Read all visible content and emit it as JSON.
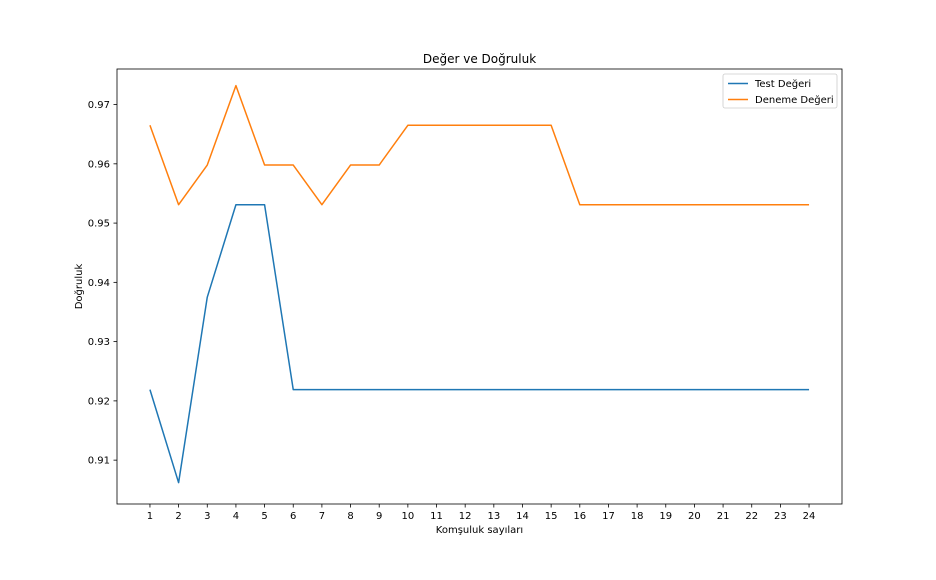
{
  "chart_data": {
    "type": "line",
    "title": "Değer ve Doğruluk",
    "xlabel": "Komşuluk sayıları",
    "ylabel": "Doğruluk",
    "x": [
      1,
      2,
      3,
      4,
      5,
      6,
      7,
      8,
      9,
      10,
      11,
      12,
      13,
      14,
      15,
      16,
      17,
      18,
      19,
      20,
      21,
      22,
      23,
      24
    ],
    "xticks": [
      "1",
      "2",
      "3",
      "4",
      "5",
      "6",
      "7",
      "8",
      "9",
      "10",
      "11",
      "12",
      "13",
      "14",
      "15",
      "16",
      "17",
      "18",
      "19",
      "20",
      "21",
      "22",
      "23",
      "24"
    ],
    "yticks": [
      "0.91",
      "0.92",
      "0.93",
      "0.94",
      "0.95",
      "0.96",
      "0.97"
    ],
    "xlim": [
      -0.15,
      25.15
    ],
    "ylim": [
      0.9026,
      0.976
    ],
    "grid": false,
    "legend_position": "top-right",
    "series": [
      {
        "name": "Test Değeri",
        "color": "#1f77b4",
        "values": [
          0.9219,
          0.9062,
          0.9375,
          0.9531,
          0.9531,
          0.9219,
          0.9219,
          0.9219,
          0.9219,
          0.9219,
          0.9219,
          0.9219,
          0.9219,
          0.9219,
          0.9219,
          0.9219,
          0.9219,
          0.9219,
          0.9219,
          0.9219,
          0.9219,
          0.9219,
          0.9219,
          0.9219
        ]
      },
      {
        "name": "Deneme Değeri",
        "color": "#ff7f0e",
        "values": [
          0.9665,
          0.9531,
          0.9598,
          0.9732,
          0.9598,
          0.9598,
          0.9531,
          0.9598,
          0.9598,
          0.9665,
          0.9665,
          0.9665,
          0.9665,
          0.9665,
          0.9665,
          0.9531,
          0.9531,
          0.9531,
          0.9531,
          0.9531,
          0.9531,
          0.9531,
          0.9531,
          0.9531
        ]
      }
    ]
  }
}
